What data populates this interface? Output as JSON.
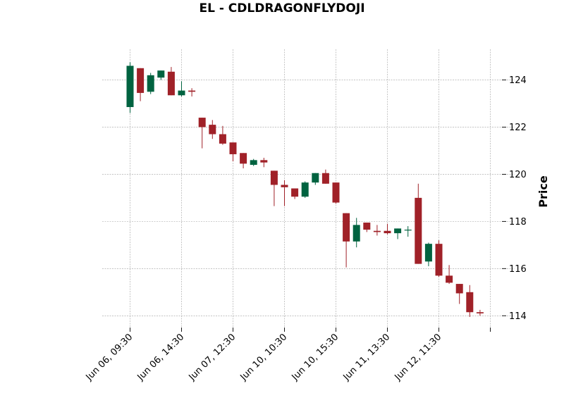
{
  "chart_data": {
    "type": "candlestick",
    "title": "EL - CDLDRAGONFLYDOJI",
    "ylabel": "Price",
    "xlabel": "",
    "ylim": [
      113.5,
      125.3
    ],
    "y_ticks": [
      114,
      116,
      118,
      120,
      122,
      124
    ],
    "x_tick_labels": [
      {
        "index": 0,
        "label": "Jun 06, 09:30"
      },
      {
        "index": 5,
        "label": "Jun 06, 14:30"
      },
      {
        "index": 10,
        "label": "Jun 07, 12:30"
      },
      {
        "index": 15,
        "label": "Jun 10, 10:30"
      },
      {
        "index": 20,
        "label": "Jun 10, 15:30"
      },
      {
        "index": 25,
        "label": "Jun 11, 13:30"
      },
      {
        "index": 30,
        "label": "Jun 12, 11:30"
      },
      {
        "index": 35,
        "label": ""
      }
    ],
    "grid": true,
    "up_color": "#006340",
    "down_color": "#a02128",
    "candles": [
      {
        "o": 122.85,
        "h": 124.75,
        "l": 122.6,
        "c": 124.6
      },
      {
        "o": 124.5,
        "h": 124.5,
        "l": 123.1,
        "c": 123.45
      },
      {
        "o": 123.5,
        "h": 124.3,
        "l": 123.4,
        "c": 124.2
      },
      {
        "o": 124.1,
        "h": 124.4,
        "l": 124.0,
        "c": 124.4
      },
      {
        "o": 124.35,
        "h": 124.55,
        "l": 123.35,
        "c": 123.35
      },
      {
        "o": 123.35,
        "h": 123.95,
        "l": 123.3,
        "c": 123.55
      },
      {
        "o": 123.55,
        "h": 123.65,
        "l": 123.3,
        "c": 123.5
      },
      {
        "o": 122.4,
        "h": 122.4,
        "l": 121.1,
        "c": 122.0
      },
      {
        "o": 122.1,
        "h": 122.3,
        "l": 121.5,
        "c": 121.7
      },
      {
        "o": 121.7,
        "h": 122.05,
        "l": 121.25,
        "c": 121.3
      },
      {
        "o": 121.35,
        "h": 121.35,
        "l": 120.55,
        "c": 120.85
      },
      {
        "o": 120.9,
        "h": 120.9,
        "l": 120.25,
        "c": 120.45
      },
      {
        "o": 120.4,
        "h": 120.65,
        "l": 120.35,
        "c": 120.6
      },
      {
        "o": 120.6,
        "h": 120.7,
        "l": 120.3,
        "c": 120.5
      },
      {
        "o": 120.15,
        "h": 120.15,
        "l": 118.65,
        "c": 119.55
      },
      {
        "o": 119.55,
        "h": 119.75,
        "l": 118.65,
        "c": 119.45
      },
      {
        "o": 119.4,
        "h": 119.4,
        "l": 118.95,
        "c": 119.05
      },
      {
        "o": 119.05,
        "h": 119.7,
        "l": 119.0,
        "c": 119.65
      },
      {
        "o": 119.65,
        "h": 120.05,
        "l": 119.55,
        "c": 120.05
      },
      {
        "o": 120.05,
        "h": 120.2,
        "l": 119.6,
        "c": 119.6
      },
      {
        "o": 119.65,
        "h": 119.65,
        "l": 118.75,
        "c": 118.8
      },
      {
        "o": 118.35,
        "h": 118.35,
        "l": 116.05,
        "c": 117.15
      },
      {
        "o": 117.15,
        "h": 118.15,
        "l": 116.9,
        "c": 117.85
      },
      {
        "o": 117.95,
        "h": 117.95,
        "l": 117.55,
        "c": 117.65
      },
      {
        "o": 117.6,
        "h": 117.85,
        "l": 117.4,
        "c": 117.55
      },
      {
        "o": 117.6,
        "h": 117.9,
        "l": 117.45,
        "c": 117.5
      },
      {
        "o": 117.5,
        "h": 117.7,
        "l": 117.25,
        "c": 117.7
      },
      {
        "o": 117.65,
        "h": 117.8,
        "l": 117.35,
        "c": 117.65
      },
      {
        "o": 119.0,
        "h": 119.6,
        "l": 116.2,
        "c": 116.2
      },
      {
        "o": 116.3,
        "h": 117.1,
        "l": 116.1,
        "c": 117.05
      },
      {
        "o": 117.05,
        "h": 117.2,
        "l": 115.65,
        "c": 115.7
      },
      {
        "o": 115.7,
        "h": 116.15,
        "l": 115.35,
        "c": 115.4
      },
      {
        "o": 115.35,
        "h": 115.35,
        "l": 114.5,
        "c": 114.95
      },
      {
        "o": 115.0,
        "h": 115.3,
        "l": 113.95,
        "c": 114.15
      },
      {
        "o": 114.15,
        "h": 114.25,
        "l": 114.0,
        "c": 114.1
      }
    ]
  }
}
